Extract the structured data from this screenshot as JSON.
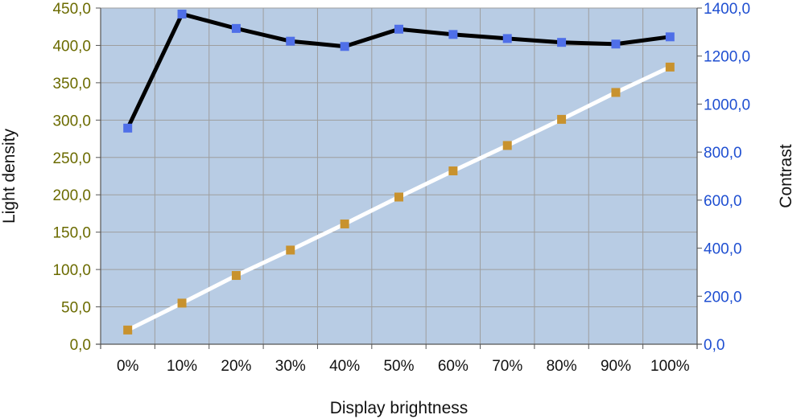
{
  "chart_data": {
    "type": "line",
    "title": "",
    "xlabel": "Display brightness",
    "ylabel": "Light density",
    "y2label": "Contrast",
    "categories": [
      "0%",
      "10%",
      "20%",
      "30%",
      "40%",
      "50%",
      "60%",
      "70%",
      "80%",
      "90%",
      "100%"
    ],
    "ylim": [
      0,
      450
    ],
    "y2lim": [
      0,
      1400
    ],
    "yticks": [
      0,
      50,
      100,
      150,
      200,
      250,
      300,
      350,
      400,
      450
    ],
    "yticks_labels": [
      "0,0",
      "50,0",
      "100,0",
      "150,0",
      "200,0",
      "250,0",
      "300,0",
      "350,0",
      "400,0",
      "450,0"
    ],
    "y2ticks": [
      0,
      200,
      400,
      600,
      800,
      1000,
      1200,
      1400
    ],
    "y2ticks_labels": [
      "0,0",
      "200,0",
      "400,0",
      "600,0",
      "800,0",
      "1000,0",
      "1200,0",
      "1400,0"
    ],
    "grid": true,
    "legend": "none",
    "colors": {
      "plot_background": "#b8cce4",
      "grid": "#9e9e9e",
      "contrast_line": "#000000",
      "contrast_marker": "#4f6fe8",
      "light_line": "#ffffff",
      "light_marker": "#c8922e",
      "left_tick_text": "#6b6b00",
      "right_tick_text": "#1f4fd1"
    },
    "series": [
      {
        "axis": "left",
        "values": [
          19,
          55,
          92,
          126,
          161,
          197,
          232,
          266,
          301,
          337,
          371
        ]
      },
      {
        "axis": "right",
        "values": [
          900,
          1375,
          1315,
          1262,
          1240,
          1312,
          1290,
          1273,
          1257,
          1250,
          1280
        ]
      }
    ]
  }
}
